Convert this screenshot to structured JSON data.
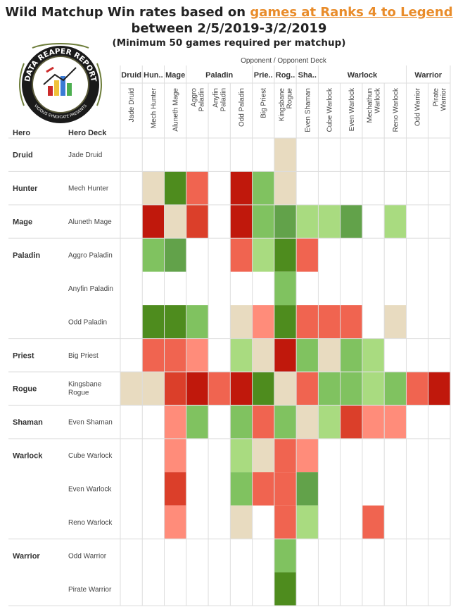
{
  "title": {
    "prefix": "Wild Matchup Win rates based on ",
    "link": "games at Ranks 4 to Legend",
    "line2": "between 2/5/2019-3/2/2019",
    "line3": "(Minimum 50 games required per matchup)"
  },
  "logo": {
    "top_text": "DATA REAPER REPORT",
    "bottom_text": "VICIOUS SYNDICATE PRESENTS"
  },
  "colors": {
    "win_strong": "#4e8c1e",
    "win_mid": "#62a24a",
    "win_light": "#80c260",
    "win_pale": "#a9db80",
    "even": "#e8dbc0",
    "loss_pale": "#ff8c7a",
    "loss_light": "#f06450",
    "loss_mid": "#db3f2a",
    "loss_strong": "#c0180c",
    "grid": "#dddddd"
  },
  "chart_data": {
    "type": "heatmap",
    "x_axis_label": "Opponent  /  Opponent Deck",
    "row_axis_labels": [
      "Hero",
      "Hero Deck"
    ],
    "opponent_heroes": [
      {
        "name": "Druid",
        "span": 1
      },
      {
        "name": "Hun..",
        "span": 1
      },
      {
        "name": "Mage",
        "span": 1
      },
      {
        "name": "Paladin",
        "span": 3
      },
      {
        "name": "Prie..",
        "span": 1
      },
      {
        "name": "Rog..",
        "span": 1
      },
      {
        "name": "Sha..",
        "span": 1
      },
      {
        "name": "Warlock",
        "span": 4
      },
      {
        "name": "Warrior",
        "span": 2
      }
    ],
    "columns": [
      "Jade Druid",
      "Mech Hunter",
      "Aluneth Mage",
      "Aggro Paladin",
      "Anyfin Paladin",
      "Odd Paladin",
      "Big Priest",
      "Kingsbane Rogue",
      "Even Shaman",
      "Cube Warlock",
      "Even Warlock",
      "Mechathun Warlock",
      "Reno Warlock",
      "Odd Warrior",
      "Pirate Warrior"
    ],
    "row_groups": [
      {
        "hero": "Druid",
        "rows": 1
      },
      {
        "hero": "Hunter",
        "rows": 1
      },
      {
        "hero": "Mage",
        "rows": 1
      },
      {
        "hero": "Paladin",
        "rows": 3
      },
      {
        "hero": "Priest",
        "rows": 1
      },
      {
        "hero": "Rogue",
        "rows": 1
      },
      {
        "hero": "Shaman",
        "rows": 1
      },
      {
        "hero": "Warlock",
        "rows": 3
      },
      {
        "hero": "Warrior",
        "rows": 2
      }
    ],
    "rows": [
      "Jade Druid",
      "Mech Hunter",
      "Aluneth Mage",
      "Aggro Paladin",
      "Anyfin Paladin",
      "Odd Paladin",
      "Big Priest",
      "Kingsbane Rogue",
      "Even Shaman",
      "Cube Warlock",
      "Even Warlock",
      "Reno Warlock",
      "Odd Warrior",
      "Pirate Warrior"
    ],
    "color_scale": "win_strong > win_mid > win_light > win_pale > even > loss_pale > loss_light > loss_mid > loss_strong",
    "cells": [
      [
        "",
        "",
        "",
        "",
        "",
        "",
        "",
        "even",
        "",
        "",
        "",
        "",
        "",
        "",
        ""
      ],
      [
        "",
        "even",
        "win_strong",
        "loss_light",
        "",
        "loss_strong",
        "win_light",
        "even",
        "",
        "",
        "",
        "",
        "",
        "",
        ""
      ],
      [
        "",
        "loss_strong",
        "even",
        "loss_mid",
        "",
        "loss_strong",
        "win_light",
        "win_mid",
        "win_pale",
        "win_pale",
        "win_mid",
        "",
        "win_pale",
        "",
        ""
      ],
      [
        "",
        "win_light",
        "win_mid",
        "",
        "",
        "loss_light",
        "win_pale",
        "win_strong",
        "loss_light",
        "",
        "",
        "",
        "",
        "",
        ""
      ],
      [
        "",
        "",
        "",
        "",
        "",
        "",
        "",
        "win_light",
        "",
        "",
        "",
        "",
        "",
        "",
        ""
      ],
      [
        "",
        "win_strong",
        "win_strong",
        "win_light",
        "",
        "even",
        "loss_pale",
        "win_strong",
        "loss_light",
        "loss_light",
        "loss_light",
        "",
        "even",
        "",
        ""
      ],
      [
        "",
        "loss_light",
        "loss_light",
        "loss_pale",
        "",
        "win_pale",
        "even",
        "loss_strong",
        "win_light",
        "even",
        "win_light",
        "win_pale",
        "",
        "",
        ""
      ],
      [
        "even",
        "even",
        "loss_mid",
        "loss_strong",
        "loss_light",
        "loss_strong",
        "win_strong",
        "even",
        "loss_light",
        "win_light",
        "win_light",
        "win_pale",
        "win_light",
        "loss_light",
        "loss_strong"
      ],
      [
        "",
        "",
        "loss_pale",
        "win_light",
        "",
        "win_light",
        "loss_light",
        "win_light",
        "even",
        "win_pale",
        "loss_mid",
        "loss_pale",
        "loss_pale",
        "",
        ""
      ],
      [
        "",
        "",
        "loss_pale",
        "",
        "",
        "win_pale",
        "even",
        "loss_light",
        "loss_pale",
        "",
        "",
        "",
        "",
        "",
        ""
      ],
      [
        "",
        "",
        "loss_mid",
        "",
        "",
        "win_light",
        "loss_light",
        "loss_light",
        "win_mid",
        "",
        "",
        "",
        "",
        "",
        ""
      ],
      [
        "",
        "",
        "loss_pale",
        "",
        "",
        "even",
        "",
        "loss_light",
        "win_pale",
        "",
        "",
        "loss_light",
        "",
        "",
        ""
      ],
      [
        "",
        "",
        "",
        "",
        "",
        "",
        "",
        "win_light",
        "",
        "",
        "",
        "",
        "",
        "",
        ""
      ],
      [
        "",
        "",
        "",
        "",
        "",
        "",
        "",
        "win_strong",
        "",
        "",
        "",
        "",
        "",
        "",
        ""
      ]
    ]
  }
}
